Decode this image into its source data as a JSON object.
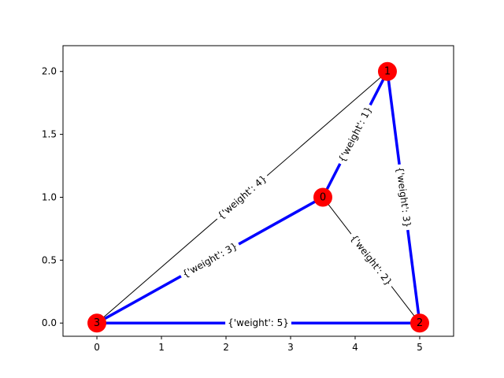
{
  "graph": {
    "x_ticks": [
      {
        "value": 0,
        "label": "0"
      },
      {
        "value": 1,
        "label": "1"
      },
      {
        "value": 2,
        "label": "2"
      },
      {
        "value": 3,
        "label": "3"
      },
      {
        "value": 4,
        "label": "4"
      },
      {
        "value": 5,
        "label": "5"
      }
    ],
    "y_ticks": [
      {
        "value": 0.0,
        "label": "0.0"
      },
      {
        "value": 0.5,
        "label": "0.5"
      },
      {
        "value": 1.0,
        "label": "1.0"
      },
      {
        "value": 1.5,
        "label": "1.5"
      },
      {
        "value": 2.0,
        "label": "2.0"
      }
    ],
    "xlim": [
      -0.525,
      5.525
    ],
    "ylim": [
      -0.105,
      2.205
    ],
    "nodes": [
      {
        "id": "0",
        "label": "0",
        "x": 3.5,
        "y": 1.0
      },
      {
        "id": "1",
        "label": "1",
        "x": 4.5,
        "y": 2.0
      },
      {
        "id": "2",
        "label": "2",
        "x": 5.0,
        "y": 0.0
      },
      {
        "id": "3",
        "label": "3",
        "x": 0.0,
        "y": 0.0
      }
    ],
    "edges": [
      {
        "source": "3",
        "target": "1",
        "label": "{'weight': 4}",
        "highlighted": false
      },
      {
        "source": "0",
        "target": "2",
        "label": "{'weight': 2}",
        "highlighted": false
      },
      {
        "source": "3",
        "target": "0",
        "label": "{'weight': 3}",
        "highlighted": true
      },
      {
        "source": "0",
        "target": "1",
        "label": "{'weight': 1}",
        "highlighted": true
      },
      {
        "source": "1",
        "target": "2",
        "label": "{'weight': 3}",
        "highlighted": true
      },
      {
        "source": "3",
        "target": "2",
        "label": "{'weight': 5}",
        "highlighted": true
      }
    ],
    "colors": {
      "node_fill": "#ff0000",
      "highlight_edge": "#0000ff",
      "normal_edge": "#000000",
      "axes": "#000000",
      "background": "#ffffff"
    }
  }
}
